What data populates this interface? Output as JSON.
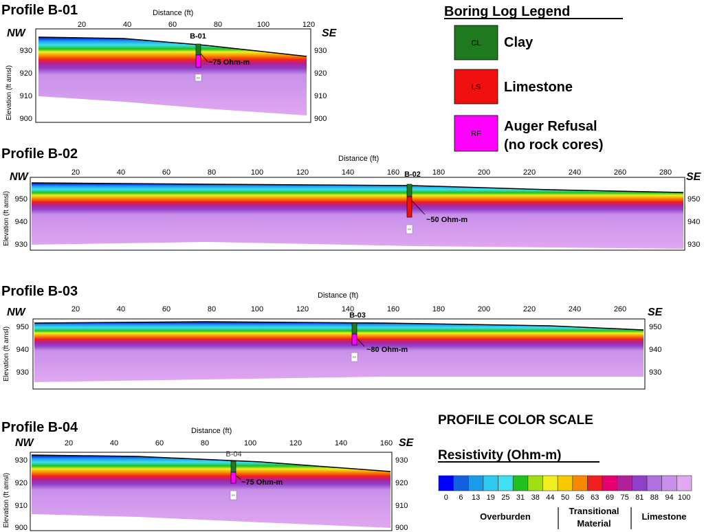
{
  "profiles": [
    {
      "title": "Profile B-01",
      "dist_label": "Distance (ft)",
      "elev_label": "Elevation (ft amsl)",
      "nw": "NW",
      "se": "SE",
      "x_ticks": [
        "20",
        "40",
        "60",
        "80",
        "100",
        "120"
      ],
      "y_ticks": [
        "930",
        "920",
        "910",
        "900"
      ],
      "boring": "B-01",
      "annotation": "~75 Ohm-m",
      "marker": "RF"
    },
    {
      "title": "Profile B-02",
      "dist_label": "Distance (ft)",
      "elev_label": "Elevation (ft amsl)",
      "nw": "NW",
      "se": "SE",
      "x_ticks": [
        "20",
        "40",
        "60",
        "80",
        "100",
        "120",
        "140",
        "160",
        "180",
        "200",
        "220",
        "240",
        "260",
        "280"
      ],
      "y_ticks": [
        "950",
        "940",
        "930"
      ],
      "boring": "B-02",
      "annotation": "~50 Ohm-m",
      "marker": "RF"
    },
    {
      "title": "Profile B-03",
      "dist_label": "Distance (ft)",
      "elev_label": "Elevation (ft amsl)",
      "nw": "NW",
      "se": "SE",
      "x_ticks": [
        "20",
        "40",
        "60",
        "80",
        "100",
        "120",
        "140",
        "160",
        "180",
        "200",
        "220",
        "240",
        "260"
      ],
      "y_ticks": [
        "950",
        "940",
        "930"
      ],
      "boring": "B-03",
      "annotation": "~80 Ohm-m",
      "marker": "RF"
    },
    {
      "title": "Profile B-04",
      "dist_label": "Distance (ft)",
      "elev_label": "Elevation (ft amsl)",
      "nw": "NW",
      "se": "SE",
      "x_ticks": [
        "20",
        "40",
        "60",
        "80",
        "100",
        "120",
        "140",
        "160"
      ],
      "y_ticks": [
        "930",
        "920",
        "910",
        "900"
      ],
      "boring": "B-04",
      "annotation": "~75 Ohm-m",
      "marker": "RF"
    }
  ],
  "legend": {
    "title": "Boring Log Legend",
    "items": [
      {
        "code": "CL",
        "label": "Clay",
        "color": "#1f7a1f"
      },
      {
        "code": "LS",
        "label": "Limestone",
        "color": "#f01010"
      },
      {
        "code": "RF",
        "label": "Auger Refusal",
        "label2": "(no rock cores)",
        "color": "#ff00ff"
      }
    ]
  },
  "scale": {
    "title": "PROFILE COLOR SCALE",
    "subtitle": "Resistivity (Ohm-m)",
    "values": [
      "0",
      "6",
      "13",
      "19",
      "25",
      "31",
      "38",
      "44",
      "50",
      "56",
      "63",
      "69",
      "75",
      "81",
      "88",
      "94",
      "100"
    ],
    "colors": [
      "#0000ff",
      "#1060e0",
      "#1c9ce8",
      "#2ec8f0",
      "#3fe0f0",
      "#20c020",
      "#a0e010",
      "#f0f020",
      "#f8c800",
      "#f88800",
      "#f02020",
      "#e80070",
      "#b02098",
      "#9040c8",
      "#b070e0",
      "#c890ea",
      "#e0a8f0"
    ],
    "groups": [
      "Overburden",
      "Transitional",
      "Material",
      "Limestone"
    ]
  }
}
